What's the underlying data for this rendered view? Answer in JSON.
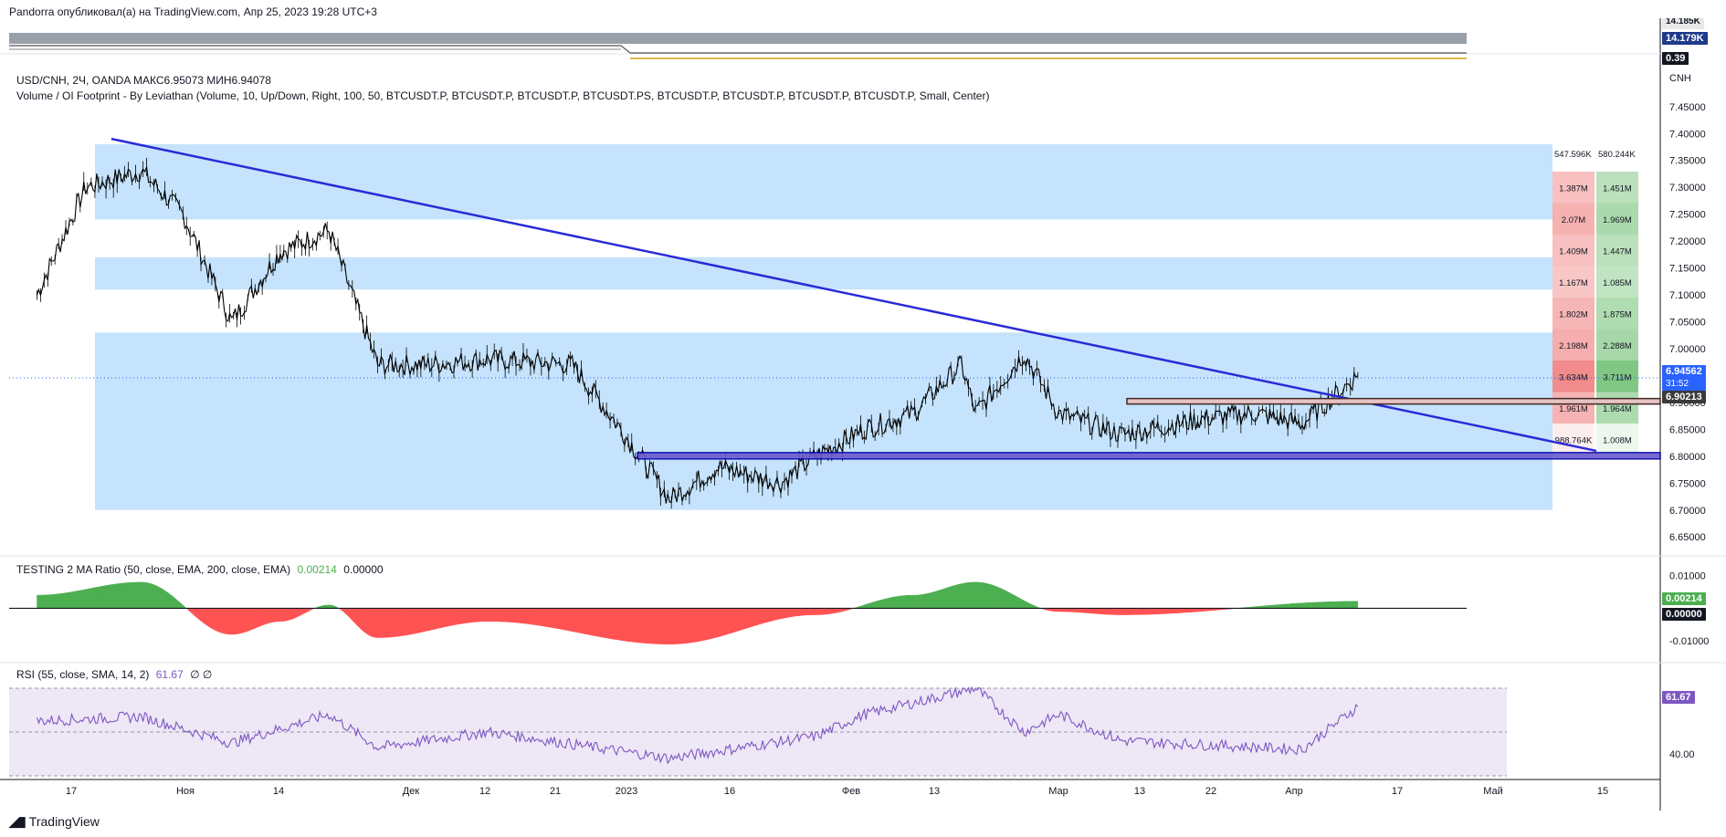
{
  "header": {
    "published": "Pandorra опубликовал(а) на TradingView.com, Апр 25, 2023 19:28 UTC+3"
  },
  "top_panel": {
    "labels": [
      "14.179K",
      "0.39"
    ],
    "label_colors": [
      "#1e3a8a",
      "#131722"
    ],
    "cut_label": "14.185K"
  },
  "main_pane": {
    "symbol_line": "USD/CNH, 2Ч, OANDA  МАКС6.95073  МИН6.94078",
    "indicator_line": "Volume / OI Footprint - By Leviathan (Volume, 10, Up/Down, Right, 100, 50, BTCUSDT.P, BTCUSDT.P, BTCUSDT.P, BTCUSDT.PS, BTCUSDT.P, BTCUSDT.P, BTCUSDT.P, BTCUSDT.P, Small, Center)",
    "currency": "CNH",
    "price_ticks": [
      "7.45000",
      "7.40000",
      "7.35000",
      "7.30000",
      "7.25000",
      "7.20000",
      "7.15000",
      "7.10000",
      "7.05000",
      "7.00000",
      "6.95000",
      "6.90000",
      "6.85000",
      "6.80000",
      "6.75000",
      "6.70000",
      "6.65000"
    ],
    "last_price": "6.94562",
    "countdown": "31:52",
    "level_price": "6.90213",
    "footprint_header": [
      "547.596K",
      "580.244K"
    ],
    "footprint_rows": [
      {
        "down": "1.387M",
        "up": "1.451M"
      },
      {
        "down": "2.07M",
        "up": "1.969M"
      },
      {
        "down": "1.409M",
        "up": "1.447M"
      },
      {
        "down": "1.167M",
        "up": "1.085M"
      },
      {
        "down": "1.802M",
        "up": "1.875M"
      },
      {
        "down": "2.198M",
        "up": "2.288M"
      },
      {
        "down": "3.634M",
        "up": "3.711M"
      },
      {
        "down": "1.961M",
        "up": "1.964M"
      },
      {
        "down": "988.764K",
        "up": "1.008M"
      }
    ]
  },
  "ma_pane": {
    "legend": "TESTING 2 MA Ratio (50, close, EMA, 200, close, EMA)",
    "value1": "0.00214",
    "value2": "0.00000",
    "ticks": [
      "0.01000",
      "-0.01000"
    ],
    "label_current": "0.00214",
    "label_zero": "0.00000"
  },
  "rsi_pane": {
    "legend": "RSI (55, close, SMA, 14, 2)",
    "value": "61.67",
    "extra": "∅  ∅",
    "ticks": [
      "40.00"
    ],
    "label_current": "61.67"
  },
  "time_axis": {
    "labels": [
      "17",
      "Ноя",
      "14",
      "Дек",
      "12",
      "21",
      "2023",
      "16",
      "Фев",
      "13",
      "Мар",
      "13",
      "22",
      "Апр",
      "17",
      "Май",
      "15"
    ]
  },
  "footer": {
    "brand": "TradingView"
  },
  "colors": {
    "candle": "#000000",
    "trendline": "#2a2ad6",
    "zone": "#bbdefb",
    "level_line": "#2a2ad6",
    "resistance_line": "#8d6e63",
    "ma_positive": "#4caf50",
    "ma_negative": "#ff5252",
    "rsi_line": "#7e57c2",
    "rsi_band": "#ede7f6",
    "fp_down": "#f28b8b",
    "fp_up": "#81c784",
    "price_label": "#2962ff",
    "level_label": "#131722"
  },
  "chart_data": [
    {
      "type": "line",
      "series_kind": "candlestick price (USD/CNH, 2H)",
      "x": [
        "2022-10-17",
        "2022-10-24",
        "2022-11-01",
        "2022-11-07",
        "2022-11-14",
        "2022-11-21",
        "2022-11-28",
        "2022-12-05",
        "2022-12-12",
        "2022-12-21",
        "2023-01-02",
        "2023-01-09",
        "2023-01-16",
        "2023-01-23",
        "2023-02-01",
        "2023-02-06",
        "2023-02-13",
        "2023-02-20",
        "2023-02-27",
        "2023-03-01",
        "2023-03-08",
        "2023-03-13",
        "2023-03-22",
        "2023-04-03",
        "2023-04-10",
        "2023-04-17",
        "2023-04-25"
      ],
      "y": [
        7.1,
        7.3,
        7.33,
        7.25,
        7.05,
        7.18,
        7.22,
        6.97,
        6.97,
        6.98,
        6.97,
        6.85,
        6.72,
        6.78,
        6.75,
        6.8,
        6.85,
        6.88,
        6.97,
        6.88,
        6.99,
        6.88,
        6.84,
        6.87,
        6.88,
        6.86,
        6.95
      ],
      "ylim": [
        6.63,
        7.47
      ],
      "annotations": {
        "descending_trendline": [
          [
            "2022-10-24",
            7.39
          ],
          [
            "2023-05-10",
            6.81
          ]
        ],
        "support_level": 6.8,
        "resistance_level": 6.90213,
        "zones": [
          [
            7.24,
            7.38
          ],
          [
            7.11,
            7.17
          ],
          [
            6.7,
            7.03
          ]
        ]
      }
    },
    {
      "type": "area",
      "name": "TESTING 2 MA Ratio",
      "x": [
        "2022-10-17",
        "2022-11-01",
        "2022-11-14",
        "2022-11-21",
        "2022-11-28",
        "2022-12-05",
        "2022-12-21",
        "2023-01-16",
        "2023-02-06",
        "2023-02-20",
        "2023-03-01",
        "2023-03-13",
        "2023-03-22",
        "2023-04-25"
      ],
      "y": [
        0.004,
        0.008,
        -0.008,
        -0.004,
        0.001,
        -0.009,
        -0.004,
        -0.011,
        -0.002,
        0.004,
        0.008,
        -0.001,
        -0.002,
        0.00214
      ],
      "ylim": [
        -0.015,
        0.013
      ]
    },
    {
      "type": "line",
      "name": "RSI",
      "x": [
        "2022-10-17",
        "2022-11-01",
        "2022-11-14",
        "2022-11-28",
        "2022-12-05",
        "2022-12-21",
        "2023-01-16",
        "2023-02-06",
        "2023-02-13",
        "2023-03-01",
        "2023-03-08",
        "2023-03-13",
        "2023-03-22",
        "2023-04-17",
        "2023-04-25"
      ],
      "y": [
        55,
        57,
        45,
        58,
        43,
        50,
        38,
        48,
        58,
        70,
        50,
        58,
        46,
        42,
        61.67
      ],
      "ylim": [
        30,
        75
      ]
    }
  ]
}
